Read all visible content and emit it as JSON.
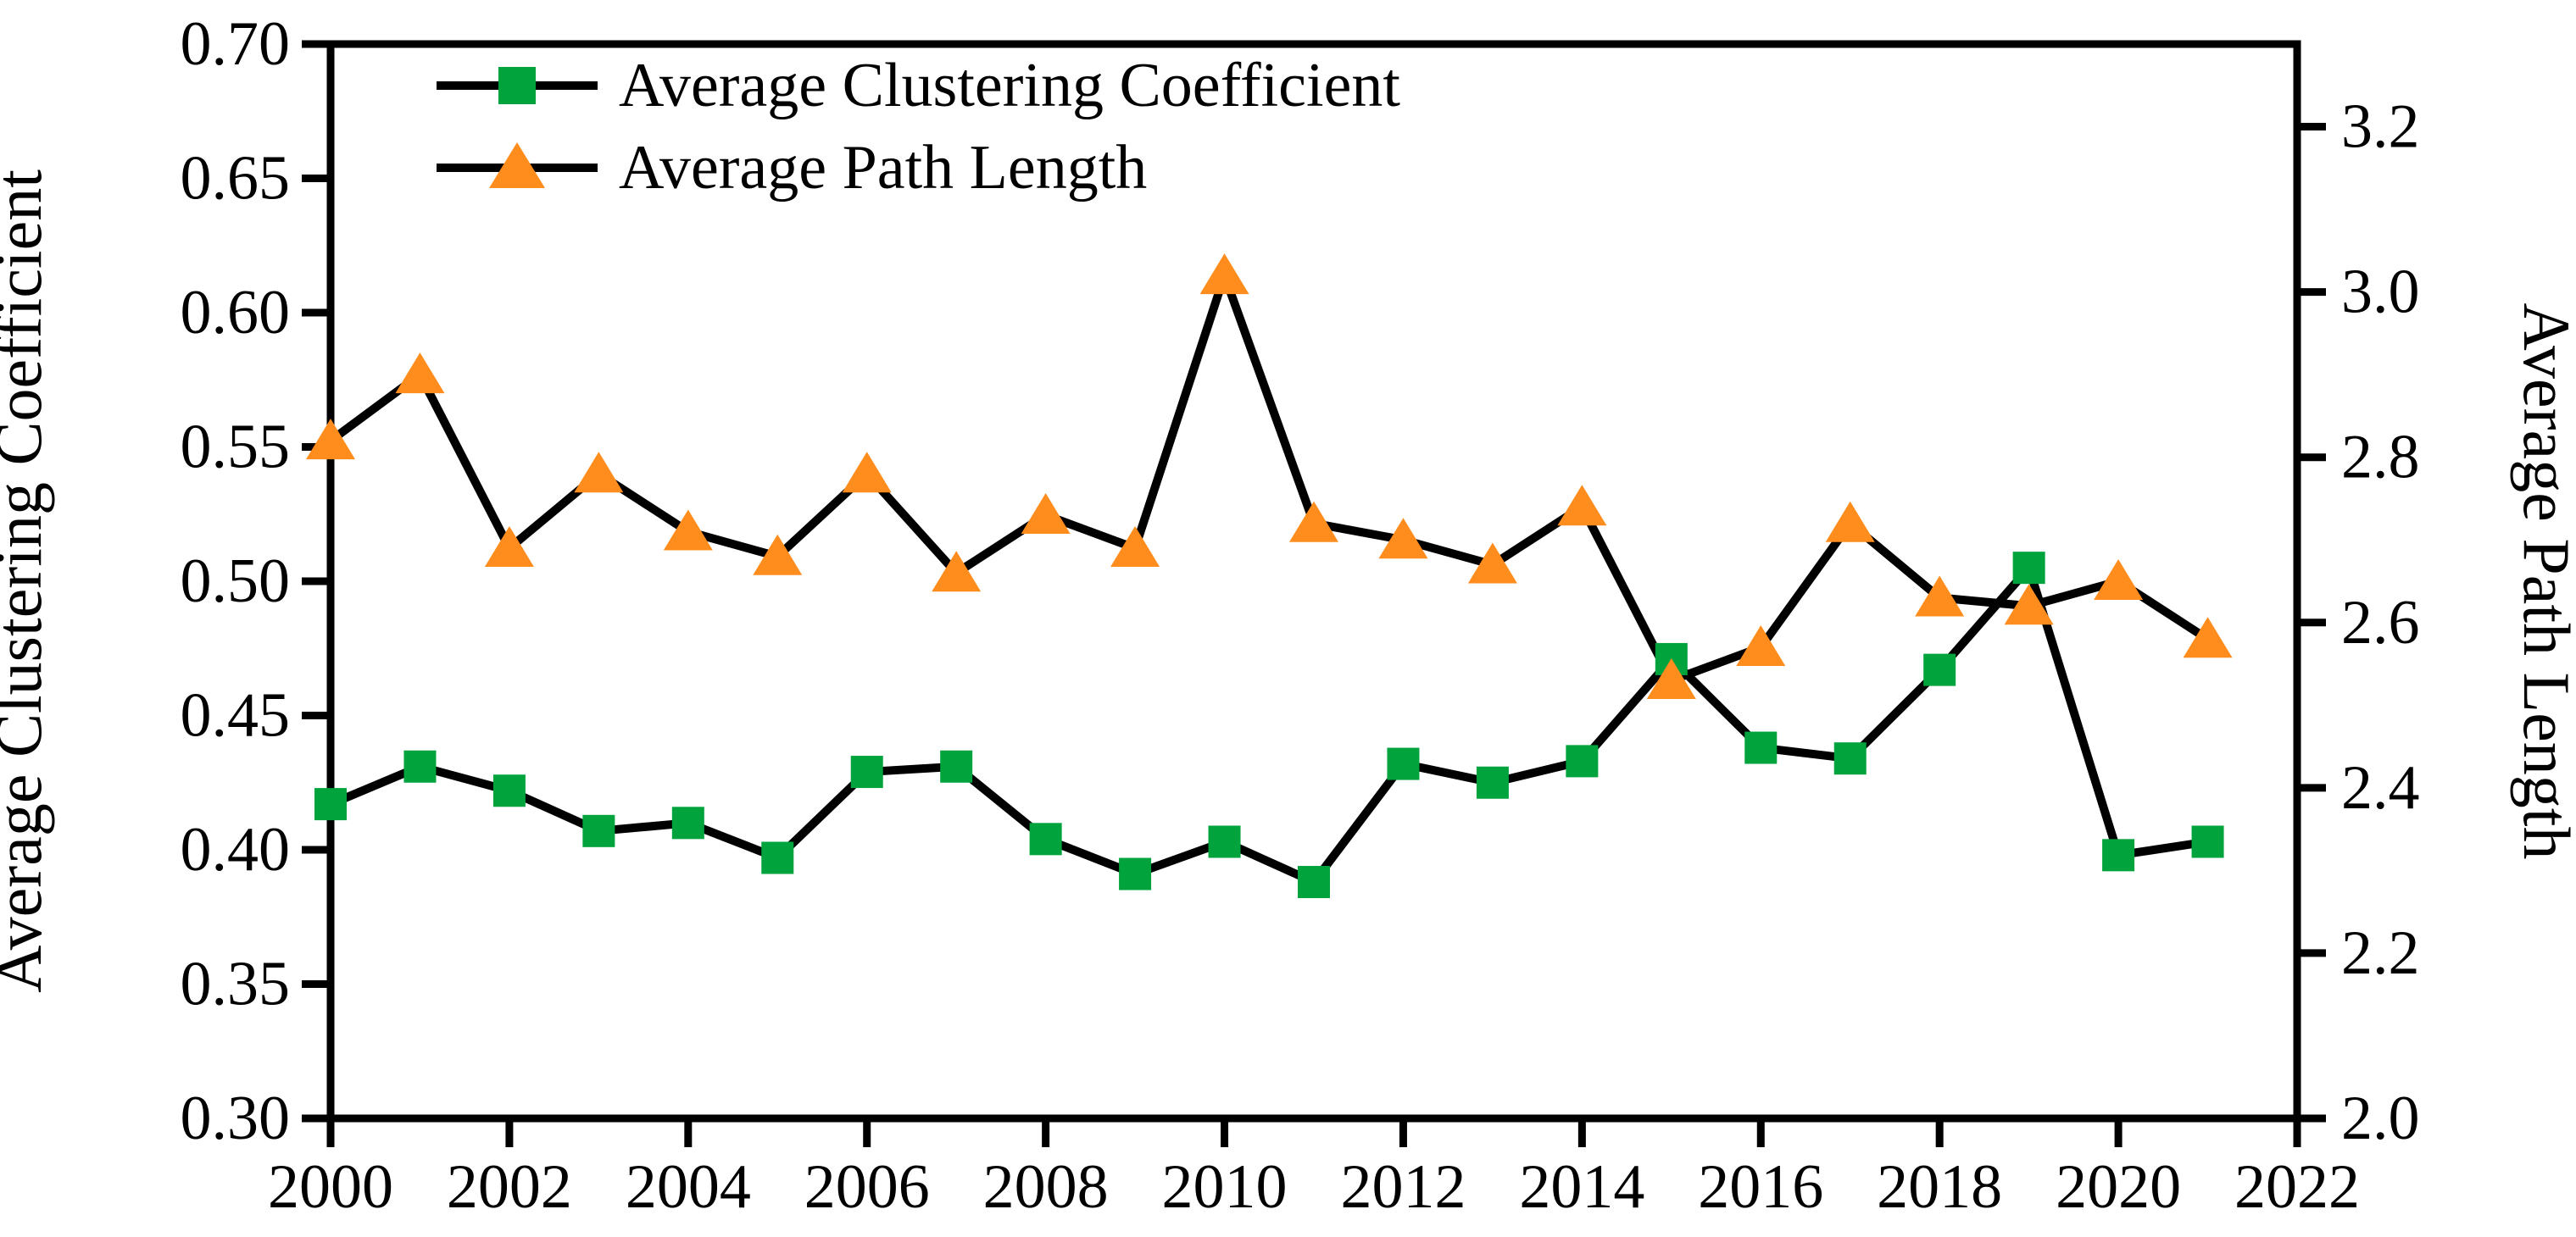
{
  "chart_data": {
    "type": "line",
    "title": "",
    "x": [
      2000,
      2001,
      2002,
      2003,
      2004,
      2005,
      2006,
      2007,
      2008,
      2009,
      2010,
      2011,
      2012,
      2013,
      2014,
      2015,
      2016,
      2017,
      2018,
      2019,
      2020,
      2021
    ],
    "series": [
      {
        "name": "Average Clustering Coefficient",
        "axis": "left",
        "marker": "square",
        "color": "#00A33C",
        "values": [
          0.417,
          0.431,
          0.422,
          0.407,
          0.41,
          0.397,
          0.429,
          0.431,
          0.404,
          0.391,
          0.403,
          0.388,
          0.432,
          0.425,
          0.433,
          0.471,
          0.438,
          0.434,
          0.467,
          0.505,
          0.398,
          0.403
        ]
      },
      {
        "name": "Average Path Length",
        "axis": "right",
        "marker": "triangle",
        "color": "#FF8D1E",
        "values": [
          2.82,
          2.9,
          2.69,
          2.78,
          2.71,
          2.68,
          2.78,
          2.66,
          2.73,
          2.69,
          3.02,
          2.72,
          2.7,
          2.67,
          2.74,
          2.53,
          2.57,
          2.72,
          2.63,
          2.62,
          2.65,
          2.58
        ]
      }
    ],
    "left_axis": {
      "label": "Average Clustering Coefficient",
      "min": 0.3,
      "max": 0.7,
      "tick_step": 0.05,
      "ticks": [
        0.3,
        0.35,
        0.4,
        0.45,
        0.5,
        0.55,
        0.6,
        0.65,
        0.7
      ],
      "decimals": 2
    },
    "right_axis": {
      "label": "Average Path Length",
      "min": 2.0,
      "max": 3.3,
      "tick_step": 0.2,
      "ticks": [
        2.0,
        2.2,
        2.4,
        2.6,
        2.8,
        3.0,
        3.2
      ],
      "decimals": 1
    },
    "x_axis": {
      "min": 2000,
      "max": 2022,
      "tick_step": 2,
      "ticks": [
        2000,
        2002,
        2004,
        2006,
        2008,
        2010,
        2012,
        2014,
        2016,
        2018,
        2020,
        2022
      ],
      "decimals": 0
    },
    "line_color": "#000000",
    "grid": false,
    "legend_position": "top-left-inside"
  }
}
